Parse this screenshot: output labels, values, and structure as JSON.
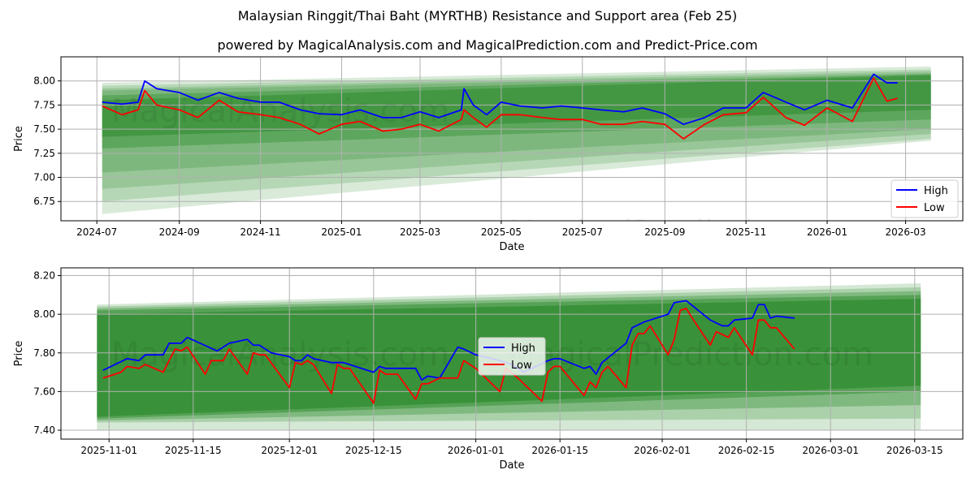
{
  "title": "Malaysian Ringgit/Thai Baht (MYRTHB) Resistance and Support area (Feb 25)",
  "subtitle": "powered by MagicalAnalysis.com and MagicalPrediction.com and Predict-Price.com",
  "watermarks": [
    "MagicalAnalysis.com",
    "MagicalPrediction.com"
  ],
  "colors": {
    "high": "#0000ff",
    "low": "#ff0000",
    "band": "#2e8b2e"
  },
  "chart_data": [
    {
      "type": "line",
      "xlabel": "Date",
      "ylabel": "Price",
      "xlim": [
        "2024-06-04",
        "2026-04-13"
      ],
      "ylim": [
        6.55,
        8.25
      ],
      "xticks": [
        [
          "2024-07-01",
          "2024-07"
        ],
        [
          "2024-09-01",
          "2024-09"
        ],
        [
          "2024-11-01",
          "2024-11"
        ],
        [
          "2025-01-01",
          "2025-01"
        ],
        [
          "2025-03-01",
          "2025-03"
        ],
        [
          "2025-05-01",
          "2025-05"
        ],
        [
          "2025-07-01",
          "2025-07"
        ],
        [
          "2025-09-01",
          "2025-09"
        ],
        [
          "2025-11-01",
          "2025-11"
        ],
        [
          "2026-01-01",
          "2026-01"
        ],
        [
          "2026-03-01",
          "2026-03"
        ]
      ],
      "yticks": [
        6.75,
        7.0,
        7.25,
        7.5,
        7.75,
        8.0
      ],
      "legend": "bottom-right",
      "grid": true,
      "band_range": [
        "2024-07-05",
        "2026-03-20"
      ],
      "bands": [
        [
          6.62,
          7.98,
          7.38,
          8.15,
          0.18
        ],
        [
          6.75,
          7.95,
          7.4,
          8.12,
          0.2
        ],
        [
          6.88,
          7.92,
          7.45,
          8.1,
          0.22
        ],
        [
          7.05,
          7.9,
          7.5,
          8.08,
          0.25
        ],
        [
          7.3,
          7.85,
          7.6,
          8.07,
          0.4
        ],
        [
          7.42,
          7.8,
          7.7,
          8.06,
          0.55
        ]
      ],
      "series": [
        {
          "name": "High",
          "x": [
            "2024-07-05",
            "2024-07-20",
            "2024-08-01",
            "2024-08-06",
            "2024-08-15",
            "2024-09-01",
            "2024-09-15",
            "2024-10-01",
            "2024-10-15",
            "2024-11-01",
            "2024-11-15",
            "2024-12-01",
            "2024-12-15",
            "2025-01-01",
            "2025-01-15",
            "2025-02-01",
            "2025-02-15",
            "2025-03-01",
            "2025-03-15",
            "2025-04-01",
            "2025-04-03",
            "2025-04-10",
            "2025-04-20",
            "2025-05-01",
            "2025-05-15",
            "2025-06-01",
            "2025-06-15",
            "2025-07-01",
            "2025-07-15",
            "2025-08-01",
            "2025-08-15",
            "2025-09-01",
            "2025-09-15",
            "2025-10-01",
            "2025-10-15",
            "2025-11-01",
            "2025-11-14",
            "2025-12-01",
            "2025-12-15",
            "2026-01-01",
            "2026-01-20",
            "2026-02-05",
            "2026-02-15",
            "2026-02-23"
          ],
          "values": [
            7.78,
            7.76,
            7.78,
            8.0,
            7.92,
            7.88,
            7.8,
            7.88,
            7.82,
            7.78,
            7.78,
            7.7,
            7.66,
            7.65,
            7.7,
            7.62,
            7.62,
            7.68,
            7.62,
            7.7,
            7.92,
            7.75,
            7.65,
            7.78,
            7.74,
            7.72,
            7.74,
            7.72,
            7.7,
            7.68,
            7.72,
            7.66,
            7.55,
            7.62,
            7.72,
            7.72,
            7.88,
            7.78,
            7.7,
            7.8,
            7.72,
            8.07,
            7.98,
            7.98
          ]
        },
        {
          "name": "Low",
          "x": [
            "2024-07-05",
            "2024-07-20",
            "2024-08-01",
            "2024-08-06",
            "2024-08-15",
            "2024-09-01",
            "2024-09-15",
            "2024-10-01",
            "2024-10-15",
            "2024-11-01",
            "2024-11-15",
            "2024-12-01",
            "2024-12-15",
            "2025-01-01",
            "2025-01-15",
            "2025-02-01",
            "2025-02-15",
            "2025-03-01",
            "2025-03-15",
            "2025-04-01",
            "2025-04-03",
            "2025-04-10",
            "2025-04-20",
            "2025-05-01",
            "2025-05-15",
            "2025-06-01",
            "2025-06-15",
            "2025-07-01",
            "2025-07-15",
            "2025-08-01",
            "2025-08-15",
            "2025-09-01",
            "2025-09-15",
            "2025-10-01",
            "2025-10-15",
            "2025-11-01",
            "2025-11-14",
            "2025-12-01",
            "2025-12-15",
            "2026-01-01",
            "2026-01-20",
            "2026-02-05",
            "2026-02-15",
            "2026-02-23"
          ],
          "values": [
            7.74,
            7.65,
            7.7,
            7.9,
            7.75,
            7.7,
            7.62,
            7.8,
            7.68,
            7.65,
            7.62,
            7.55,
            7.45,
            7.55,
            7.58,
            7.48,
            7.5,
            7.55,
            7.48,
            7.6,
            7.7,
            7.62,
            7.52,
            7.65,
            7.65,
            7.62,
            7.6,
            7.6,
            7.55,
            7.55,
            7.58,
            7.55,
            7.4,
            7.55,
            7.65,
            7.67,
            7.83,
            7.62,
            7.54,
            7.72,
            7.58,
            8.03,
            7.79,
            7.82
          ]
        }
      ]
    },
    {
      "type": "line",
      "xlabel": "Date",
      "ylabel": "Price",
      "xlim": [
        "2025-10-24",
        "2026-03-23"
      ],
      "ylim": [
        7.354,
        8.24
      ],
      "xticks": [
        [
          "2025-11-01",
          "2025-11-01"
        ],
        [
          "2025-11-15",
          "2025-11-15"
        ],
        [
          "2025-12-01",
          "2025-12-01"
        ],
        [
          "2025-12-15",
          "2025-12-15"
        ],
        [
          "2026-01-01",
          "2026-01-01"
        ],
        [
          "2026-01-15",
          "2026-01-15"
        ],
        [
          "2026-02-01",
          "2026-02-01"
        ],
        [
          "2026-02-15",
          "2026-02-15"
        ],
        [
          "2026-03-01",
          "2026-03-01"
        ],
        [
          "2026-03-15",
          "2026-03-15"
        ]
      ],
      "yticks": [
        7.4,
        7.6,
        7.8,
        8.0,
        8.2
      ],
      "legend": "center",
      "grid": true,
      "band_range": [
        "2025-10-30",
        "2026-03-16"
      ],
      "bands": [
        [
          7.4,
          8.05,
          7.4,
          8.16,
          0.2
        ],
        [
          7.44,
          8.04,
          7.46,
          8.14,
          0.25
        ],
        [
          7.45,
          8.03,
          7.53,
          8.12,
          0.35
        ],
        [
          7.46,
          8.02,
          7.6,
          8.1,
          0.5
        ],
        [
          7.47,
          8.0,
          7.63,
          8.08,
          0.7
        ]
      ],
      "series": [
        {
          "name": "High",
          "x": [
            "2025-10-31",
            "2025-11-04",
            "2025-11-06",
            "2025-11-07",
            "2025-11-10",
            "2025-11-11",
            "2025-11-13",
            "2025-11-14",
            "2025-11-19",
            "2025-11-21",
            "2025-11-24",
            "2025-11-25",
            "2025-11-26",
            "2025-11-28",
            "2025-12-01",
            "2025-12-02",
            "2025-12-03",
            "2025-12-04",
            "2025-12-05",
            "2025-12-08",
            "2025-12-10",
            "2025-12-12",
            "2025-12-15",
            "2025-12-16",
            "2025-12-17",
            "2025-12-19",
            "2025-12-22",
            "2025-12-23",
            "2025-12-24",
            "2025-12-26",
            "2025-12-29",
            "2025-12-30",
            "2026-01-01",
            "2026-01-05",
            "2026-01-07",
            "2026-01-09",
            "2026-01-13",
            "2026-01-14",
            "2026-01-15",
            "2026-01-19",
            "2026-01-20",
            "2026-01-21",
            "2026-01-22",
            "2026-01-26",
            "2026-01-27",
            "2026-01-29",
            "2026-01-30",
            "2026-02-02",
            "2026-02-03",
            "2026-02-05",
            "2026-02-09",
            "2026-02-11",
            "2026-02-12",
            "2026-02-13",
            "2026-02-16",
            "2026-02-17",
            "2026-02-18",
            "2026-02-19",
            "2026-02-20",
            "2026-02-23"
          ],
          "values": [
            7.71,
            7.77,
            7.76,
            7.79,
            7.79,
            7.85,
            7.85,
            7.88,
            7.81,
            7.85,
            7.87,
            7.84,
            7.84,
            7.8,
            7.78,
            7.76,
            7.76,
            7.79,
            7.77,
            7.75,
            7.75,
            7.73,
            7.7,
            7.73,
            7.72,
            7.72,
            7.72,
            7.66,
            7.68,
            7.67,
            7.83,
            7.82,
            7.79,
            7.76,
            7.74,
            7.7,
            7.76,
            7.77,
            7.77,
            7.72,
            7.73,
            7.69,
            7.75,
            7.85,
            7.93,
            7.96,
            7.97,
            8.0,
            8.06,
            8.07,
            7.97,
            7.94,
            7.94,
            7.97,
            7.98,
            8.05,
            8.05,
            7.98,
            7.99,
            7.98
          ]
        },
        {
          "name": "Low",
          "x": [
            "2025-10-31",
            "2025-11-03",
            "2025-11-04",
            "2025-11-06",
            "2025-11-07",
            "2025-11-10",
            "2025-11-12",
            "2025-11-13",
            "2025-11-14",
            "2025-11-17",
            "2025-11-18",
            "2025-11-20",
            "2025-11-21",
            "2025-11-24",
            "2025-11-25",
            "2025-11-26",
            "2025-11-27",
            "2025-12-01",
            "2025-12-02",
            "2025-12-03",
            "2025-12-04",
            "2025-12-05",
            "2025-12-08",
            "2025-12-09",
            "2025-12-10",
            "2025-12-11",
            "2025-12-15",
            "2025-12-16",
            "2025-12-17",
            "2025-12-19",
            "2025-12-22",
            "2025-12-23",
            "2025-12-24",
            "2025-12-26",
            "2025-12-29",
            "2025-12-30",
            "2026-01-01",
            "2026-01-05",
            "2026-01-06",
            "2026-01-08",
            "2026-01-12",
            "2026-01-13",
            "2026-01-14",
            "2026-01-15",
            "2026-01-19",
            "2026-01-20",
            "2026-01-21",
            "2026-01-22",
            "2026-01-23",
            "2026-01-26",
            "2026-01-27",
            "2026-01-28",
            "2026-01-29",
            "2026-01-30",
            "2026-02-02",
            "2026-02-03",
            "2026-02-04",
            "2026-02-05",
            "2026-02-06",
            "2026-02-09",
            "2026-02-10",
            "2026-02-12",
            "2026-02-13",
            "2026-02-16",
            "2026-02-17",
            "2026-02-18",
            "2026-02-19",
            "2026-02-20",
            "2026-02-23"
          ],
          "values": [
            7.67,
            7.7,
            7.73,
            7.72,
            7.74,
            7.7,
            7.82,
            7.81,
            7.83,
            7.69,
            7.76,
            7.76,
            7.82,
            7.69,
            7.8,
            7.79,
            7.79,
            7.62,
            7.75,
            7.74,
            7.76,
            7.74,
            7.59,
            7.74,
            7.72,
            7.72,
            7.54,
            7.71,
            7.69,
            7.69,
            7.56,
            7.64,
            7.64,
            7.67,
            7.67,
            7.76,
            7.72,
            7.6,
            7.72,
            7.67,
            7.55,
            7.7,
            7.73,
            7.73,
            7.58,
            7.65,
            7.62,
            7.7,
            7.73,
            7.62,
            7.84,
            7.9,
            7.9,
            7.94,
            7.79,
            7.87,
            8.02,
            8.03,
            7.98,
            7.84,
            7.91,
            7.88,
            7.93,
            7.79,
            7.97,
            7.97,
            7.93,
            7.93,
            7.82
          ]
        }
      ]
    }
  ]
}
